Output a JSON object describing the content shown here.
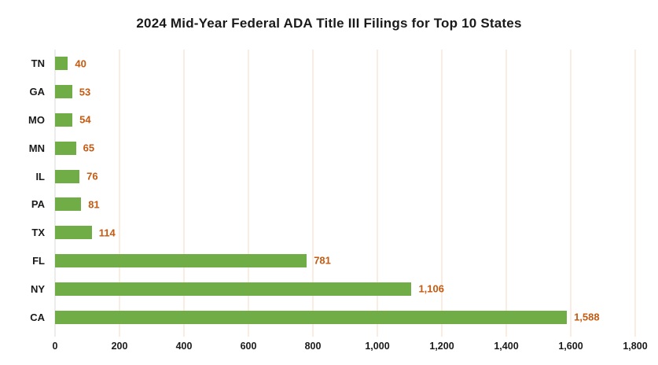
{
  "chart_data": {
    "type": "bar",
    "orientation": "horizontal",
    "title": "2024 Mid-Year Federal ADA Title III Filings for Top 10 States",
    "categories": [
      "TN",
      "GA",
      "MO",
      "MN",
      "IL",
      "PA",
      "TX",
      "FL",
      "NY",
      "CA"
    ],
    "values": [
      40,
      53,
      54,
      65,
      76,
      81,
      114,
      781,
      1106,
      1588
    ],
    "value_labels": [
      "40",
      "53",
      "54",
      "65",
      "76",
      "81",
      "114",
      "781",
      "1,106",
      "1,588"
    ],
    "xlabel": "",
    "ylabel": "",
    "xlim": [
      0,
      1800
    ],
    "x_ticks": [
      0,
      200,
      400,
      600,
      800,
      1000,
      1200,
      1400,
      1600,
      1800
    ],
    "x_tick_labels": [
      "0",
      "200",
      "400",
      "600",
      "800",
      "1,000",
      "1,200",
      "1,400",
      "1,600",
      "1,800"
    ],
    "grid": "vertical",
    "legend": "none",
    "colors": {
      "bar": "#70AD47",
      "value_label": "#C55A11",
      "gridline": "#F6D9C3",
      "zero_axis_line": "#D9D9D9",
      "text": "#1A1A1A",
      "background": "#FFFFFF"
    }
  }
}
